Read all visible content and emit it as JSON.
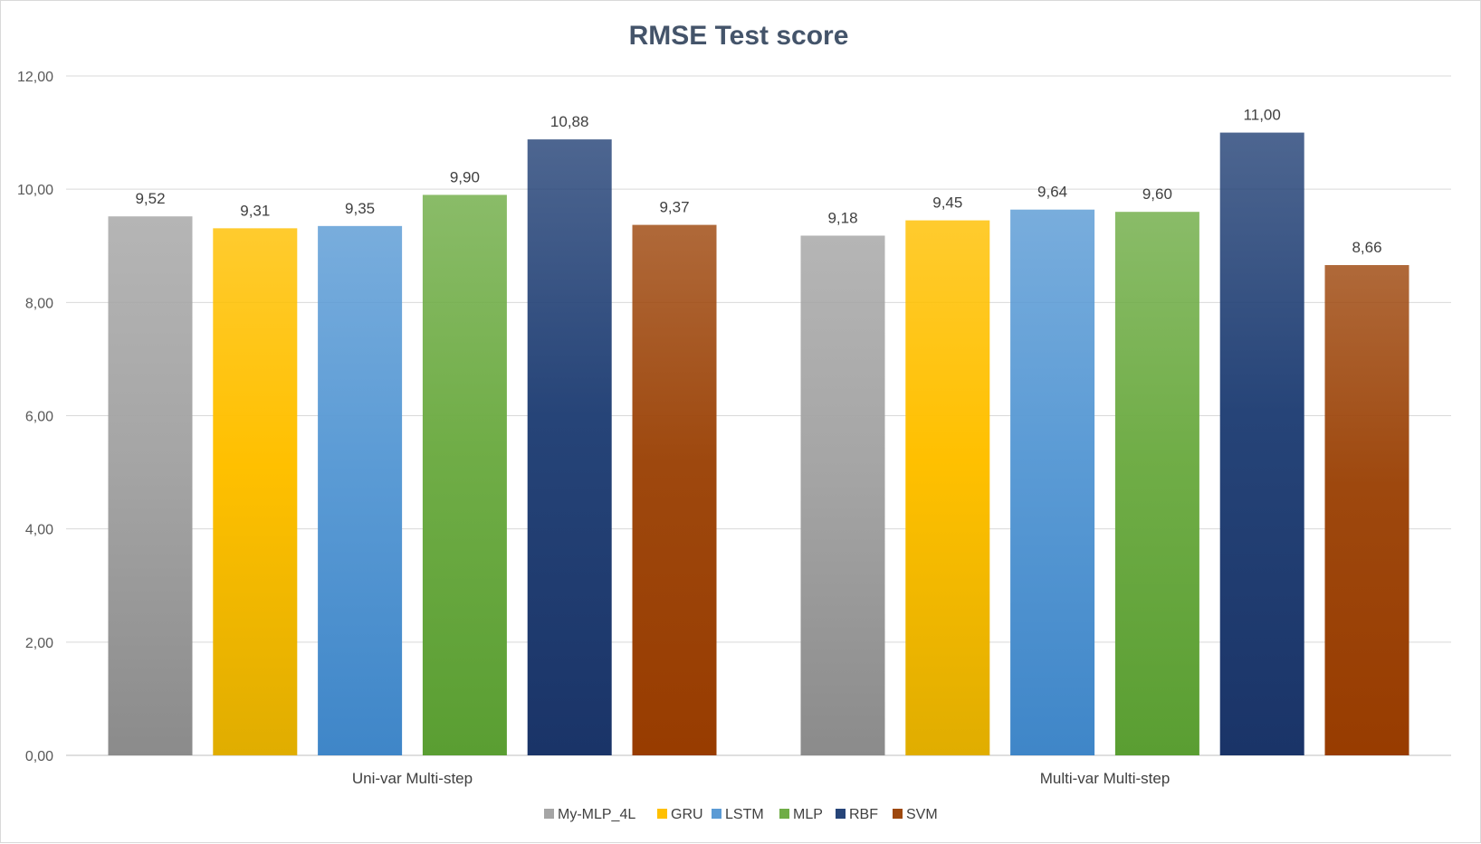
{
  "chart_data": {
    "type": "bar",
    "title": "RMSE Test score",
    "xlabel": "",
    "ylabel": "",
    "categories": [
      "Uni-var Multi-step",
      "Multi-var Multi-step"
    ],
    "ylim": [
      0,
      12
    ],
    "ytick_step": 2,
    "ytick_labels": [
      "0,00",
      "2,00",
      "4,00",
      "6,00",
      "8,00",
      "10,00",
      "12,00"
    ],
    "grid": true,
    "legend_position": "bottom",
    "series": [
      {
        "name": "My-MLP_4L",
        "values": [
          9.52,
          9.18
        ],
        "labels": [
          "9,52",
          "9,18"
        ],
        "color": "#a5a5a5",
        "color_dark": "#8b8b8b"
      },
      {
        "name": "GRU",
        "values": [
          9.31,
          9.45
        ],
        "labels": [
          "9,31",
          "9,45"
        ],
        "color": "#ffc000",
        "color_dark": "#e0ad00"
      },
      {
        "name": "LSTM",
        "values": [
          9.35,
          9.64
        ],
        "labels": [
          "9,35",
          "9,64"
        ],
        "color": "#5b9bd5",
        "color_dark": "#3f86c8"
      },
      {
        "name": "MLP",
        "values": [
          9.9,
          9.6
        ],
        "labels": [
          "9,90",
          "9,60"
        ],
        "color": "#70ad47",
        "color_dark": "#5a9e32"
      },
      {
        "name": "RBF",
        "values": [
          10.88,
          11.0
        ],
        "labels": [
          "10,88",
          "11,00"
        ],
        "color": "#264478",
        "color_dark": "#1a3468"
      },
      {
        "name": "SVM",
        "values": [
          9.37,
          8.66
        ],
        "labels": [
          "9,37",
          "8,66"
        ],
        "color": "#9e480e",
        "color_dark": "#983c00"
      }
    ]
  }
}
